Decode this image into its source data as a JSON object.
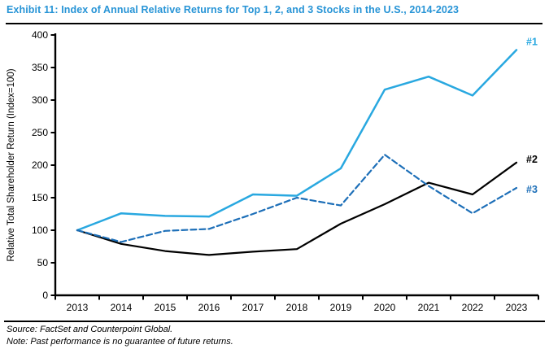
{
  "header": {
    "title": "Exhibit 11: Index of Annual Relative Returns for Top 1, 2, and 3 Stocks in the U.S., 2014-2023"
  },
  "footer": {
    "source": "Source: FactSet and Counterpoint Global.",
    "note": "Note: Past performance is no guarantee of future returns."
  },
  "colors": {
    "title": "#2794d6",
    "axis": "#000000",
    "series1": "#29a8e0",
    "series2": "#000000",
    "series3": "#1d6fb8"
  },
  "chart_data": {
    "type": "line",
    "x": [
      "2013",
      "2014",
      "2015",
      "2016",
      "2017",
      "2018",
      "2019",
      "2020",
      "2021",
      "2022",
      "2023"
    ],
    "series": [
      {
        "name": "#1",
        "color": "#29a8e0",
        "dash": "solid",
        "values": [
          100,
          126,
          122,
          121,
          155,
          153,
          195,
          316,
          336,
          307,
          377
        ]
      },
      {
        "name": "#2",
        "color": "#000000",
        "dash": "solid",
        "values": [
          100,
          79,
          68,
          62,
          67,
          71,
          110,
          140,
          173,
          155,
          204
        ]
      },
      {
        "name": "#3",
        "color": "#1d6fb8",
        "dash": "dashed",
        "values": [
          100,
          82,
          99,
          102,
          125,
          150,
          138,
          216,
          168,
          126,
          165
        ]
      }
    ],
    "ylabel": "Relative Total Shareholder Return (Index=100)",
    "xlabel": "",
    "ylim": [
      0,
      400
    ],
    "ytick_step": 50,
    "yticks": [
      0,
      50,
      100,
      150,
      200,
      250,
      300,
      350,
      400
    ],
    "grid": false,
    "legend_position": "line-end-labels"
  }
}
